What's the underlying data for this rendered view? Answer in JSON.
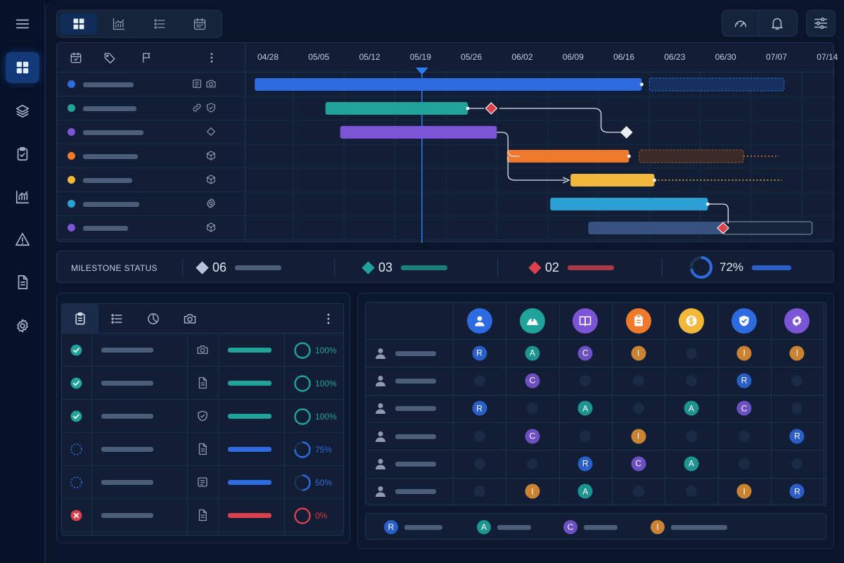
{
  "toolbar": {
    "view_tabs": [
      "grid-view-icon",
      "chart-view-icon",
      "list-view-icon",
      "calendar-view-icon"
    ],
    "right_tools": [
      "gauge-icon",
      "bell-icon",
      "sliders-icon"
    ]
  },
  "sidebar": {
    "items": [
      "menu-icon",
      "dashboard-icon",
      "layers-icon",
      "clipboard-check-icon",
      "analytics-icon",
      "warning-icon",
      "document-icon",
      "settings-icon"
    ],
    "active": "dashboard-icon"
  },
  "gantt": {
    "dates": [
      "04/28",
      "05/05",
      "05/12",
      "05/19",
      "05/26",
      "06/02",
      "06/09",
      "06/16",
      "06/23",
      "06/30",
      "07/07",
      "07/14"
    ],
    "today": "05/19",
    "header_icons": [
      "calendar-icon",
      "tag-icon",
      "flag-icon",
      "more-vertical-icon"
    ],
    "rows": [
      {
        "color": "#2f6be0",
        "icons": [
          "notes-icon",
          "camera-icon"
        ]
      },
      {
        "color": "#1fa39a",
        "icons": [
          "link-icon",
          "shield-icon"
        ]
      },
      {
        "color": "#7b55d6",
        "icons": [
          "diamond-icon"
        ]
      },
      {
        "color": "#f07a2c",
        "icons": [
          "cube-icon"
        ]
      },
      {
        "color": "#f2b83a",
        "icons": [
          "cube-icon"
        ]
      },
      {
        "color": "#2aa0d4",
        "icons": [
          "gear-icon"
        ]
      },
      {
        "color": "#7b55d6",
        "icons": [
          "cube-icon"
        ]
      }
    ],
    "colors": {
      "blue": "#2f6be0",
      "teal": "#1fa39a",
      "purple": "#7b55d6",
      "orange": "#f07a2c",
      "yellow": "#f2b83a",
      "sky": "#2aa0d4",
      "slate": "#36527e",
      "milestone_red": "#e0404a",
      "milestone_white": "#e8edf5"
    }
  },
  "milestones": {
    "title": "MILESTONE STATUS",
    "items": [
      {
        "count": "06",
        "color": "#b9c3d3",
        "bar_color": "#4c5d7a"
      },
      {
        "count": "03",
        "color": "#1fa39a",
        "bar_color": "#1d7f7a"
      },
      {
        "count": "02",
        "color": "#e0404a",
        "bar_color": "#a63a46"
      }
    ],
    "progress": {
      "label": "72%",
      "value": 0.72,
      "color": "#2f6be0"
    }
  },
  "tasks": {
    "tabs": [
      "clipboard-icon",
      "list-icon",
      "pie-chart-icon",
      "camera-icon",
      "more-vertical-icon"
    ],
    "rows": [
      {
        "status": "done",
        "type_icon": "camera-icon",
        "progress": 1.0,
        "label": "100%",
        "color": "#1fa39a"
      },
      {
        "status": "done",
        "type_icon": "document-icon",
        "progress": 1.0,
        "label": "100%",
        "color": "#1fa39a"
      },
      {
        "status": "done",
        "type_icon": "shield-icon",
        "progress": 1.0,
        "label": "100%",
        "color": "#1fa39a"
      },
      {
        "status": "in-progress",
        "type_icon": "document-icon",
        "progress": 0.75,
        "label": "75%",
        "color": "#2f6be0"
      },
      {
        "status": "in-progress",
        "type_icon": "notes-icon",
        "progress": 0.5,
        "label": "50%",
        "color": "#2f6be0"
      },
      {
        "status": "failed",
        "type_icon": "document-icon",
        "progress": 0.0,
        "label": "0%",
        "color": "#d9404a"
      }
    ]
  },
  "raci": {
    "roles": [
      {
        "icon": "person-icon",
        "color": "#2f6be0"
      },
      {
        "icon": "hard-hat-icon",
        "color": "#1fa39a"
      },
      {
        "icon": "book-icon",
        "color": "#7b55d6"
      },
      {
        "icon": "clipboard-icon",
        "color": "#f07a2c"
      },
      {
        "icon": "dollar-icon",
        "color": "#f2b83a"
      },
      {
        "icon": "shield-check-icon",
        "color": "#2f6be0"
      },
      {
        "icon": "gear-icon",
        "color": "#7b55d6"
      }
    ],
    "matrix": [
      [
        "R",
        "A",
        "C",
        "I",
        "",
        "I",
        "I"
      ],
      [
        "",
        "C",
        "",
        "",
        "",
        "R",
        ""
      ],
      [
        "R",
        "",
        "A",
        "",
        "A",
        "C",
        ""
      ],
      [
        "",
        "C",
        "",
        "I",
        "",
        "",
        "R"
      ],
      [
        "",
        "",
        "R",
        "C",
        "A",
        "",
        ""
      ],
      [
        "",
        "I",
        "A",
        "",
        "",
        "I",
        "R"
      ]
    ],
    "letter_colors": {
      "R": "#2a5fc7",
      "A": "#1d9490",
      "C": "#6d4fc4",
      "I": "#c98332"
    },
    "legend": [
      "R",
      "A",
      "C",
      "I"
    ]
  }
}
